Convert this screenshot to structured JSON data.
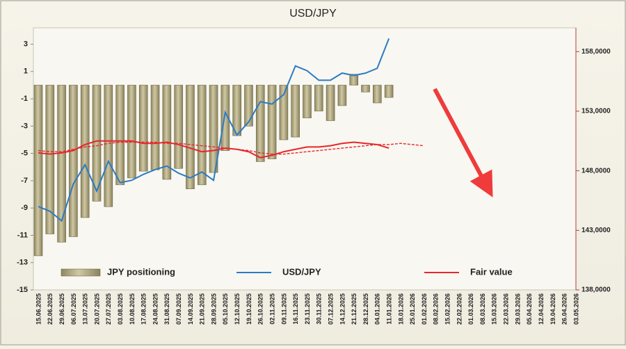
{
  "chart_data": {
    "type": "bar",
    "title": "USD/JPY",
    "categories": [
      "15.06.2025",
      "22.06.2025",
      "29.06.2025",
      "06.07.2025",
      "13.07.2025",
      "20.07.2025",
      "27.07.2025",
      "03.08.2025",
      "10.08.2025",
      "17.08.2025",
      "24.08.2025",
      "31.08.2025",
      "07.09.2025",
      "14.09.2025",
      "21.09.2025",
      "28.09.2025",
      "05.10.2025",
      "12.10.2025",
      "19.10.2025",
      "26.10.2025",
      "02.11.2025",
      "09.11.2025",
      "16.11.2025",
      "23.11.2025",
      "30.11.2025",
      "07.12.2025",
      "14.12.2025",
      "21.12.2025",
      "28.12.2025",
      "04.01.2026",
      "11.01.2026",
      "18.01.2026",
      "25.01.2026",
      "01.02.2026",
      "08.02.2026",
      "15.02.2026",
      "22.02.2026",
      "01.03.2026",
      "08.03.2026",
      "15.03.2026",
      "22.03.2026",
      "29.03.2026",
      "05.04.2026",
      "12.04.2026",
      "19.04.2026",
      "26.04.2026",
      "03.05.2026"
    ],
    "series": [
      {
        "name": "JPY positioning",
        "type": "bar",
        "color": "#b5ad88",
        "values": [
          -12.5,
          -10.9,
          -11.5,
          -11.1,
          -9.7,
          -8.5,
          -8.9,
          -7.3,
          -6.8,
          -6.3,
          -6.2,
          -6.9,
          -6.1,
          -7.6,
          -7.3,
          -6.4,
          -4.8,
          -3.7,
          -3.0,
          -5.6,
          -5.4,
          -4.0,
          -3.8,
          -2.4,
          -1.9,
          -2.6,
          -1.5,
          0.8,
          -0.5,
          -1.3,
          -0.9,
          null,
          null,
          null,
          null,
          null,
          null,
          null,
          null,
          null,
          null,
          null,
          null,
          null,
          null,
          null,
          null
        ]
      },
      {
        "name": "USD/JPY",
        "type": "line",
        "axis": "y2",
        "color": "#2b7bc4",
        "values": [
          145.0,
          144.6,
          143.8,
          146.9,
          148.5,
          146.3,
          148.8,
          147.0,
          147.2,
          147.7,
          148.1,
          148.4,
          147.8,
          147.4,
          147.9,
          147.2,
          152.9,
          151.0,
          152.1,
          153.8,
          153.6,
          154.4,
          156.8,
          156.4,
          155.6,
          155.6,
          156.2,
          156.0,
          156.2,
          156.6,
          159.1,
          null,
          null,
          null,
          null,
          null,
          null,
          null,
          null,
          null,
          null,
          null,
          null,
          null,
          null,
          null,
          null
        ]
      },
      {
        "name": "Fair value",
        "type": "line",
        "axis": "y2",
        "color": "#e8262a",
        "values": [
          149.5,
          149.4,
          149.5,
          149.7,
          150.2,
          150.5,
          150.5,
          150.5,
          150.5,
          150.3,
          150.3,
          150.4,
          150.2,
          149.9,
          149.6,
          149.7,
          149.9,
          149.8,
          149.6,
          149.1,
          149.3,
          149.6,
          149.8,
          150.0,
          150.0,
          150.1,
          150.3,
          150.4,
          150.3,
          150.2,
          149.9,
          null,
          null,
          null,
          null,
          null,
          null,
          null,
          null,
          null,
          null,
          null,
          null,
          null,
          null,
          null,
          null
        ]
      },
      {
        "type": "line",
        "axis": "y2",
        "color": "#e8262a",
        "dashed": true,
        "values": [
          149.7,
          149.6,
          149.6,
          149.8,
          150.0,
          150.1,
          150.3,
          150.4,
          150.4,
          150.4,
          150.4,
          150.3,
          150.3,
          150.2,
          150.1,
          150.0,
          149.9,
          149.8,
          149.7,
          149.5,
          149.4,
          149.4,
          149.5,
          149.6,
          149.7,
          149.8,
          149.9,
          150.0,
          150.1,
          150.2,
          150.2,
          150.3,
          150.2,
          150.1,
          null,
          null,
          null,
          null,
          null,
          null,
          null,
          null,
          null,
          null,
          null,
          null,
          null
        ]
      }
    ],
    "ylim": [
      -15,
      4.2
    ],
    "yticks": [
      -15,
      -13,
      -11,
      -9,
      -7,
      -5,
      -3,
      -1,
      1,
      3
    ],
    "y2lim": [
      138,
      160
    ],
    "y2ticks": [
      {
        "value": 138,
        "label": "138,0000"
      },
      {
        "value": 143,
        "label": "143,0000"
      },
      {
        "value": 148,
        "label": "148,0000"
      },
      {
        "value": 153,
        "label": "153,0000"
      },
      {
        "value": 158,
        "label": "158,0000"
      }
    ],
    "grid": false,
    "legend": "bottom"
  }
}
